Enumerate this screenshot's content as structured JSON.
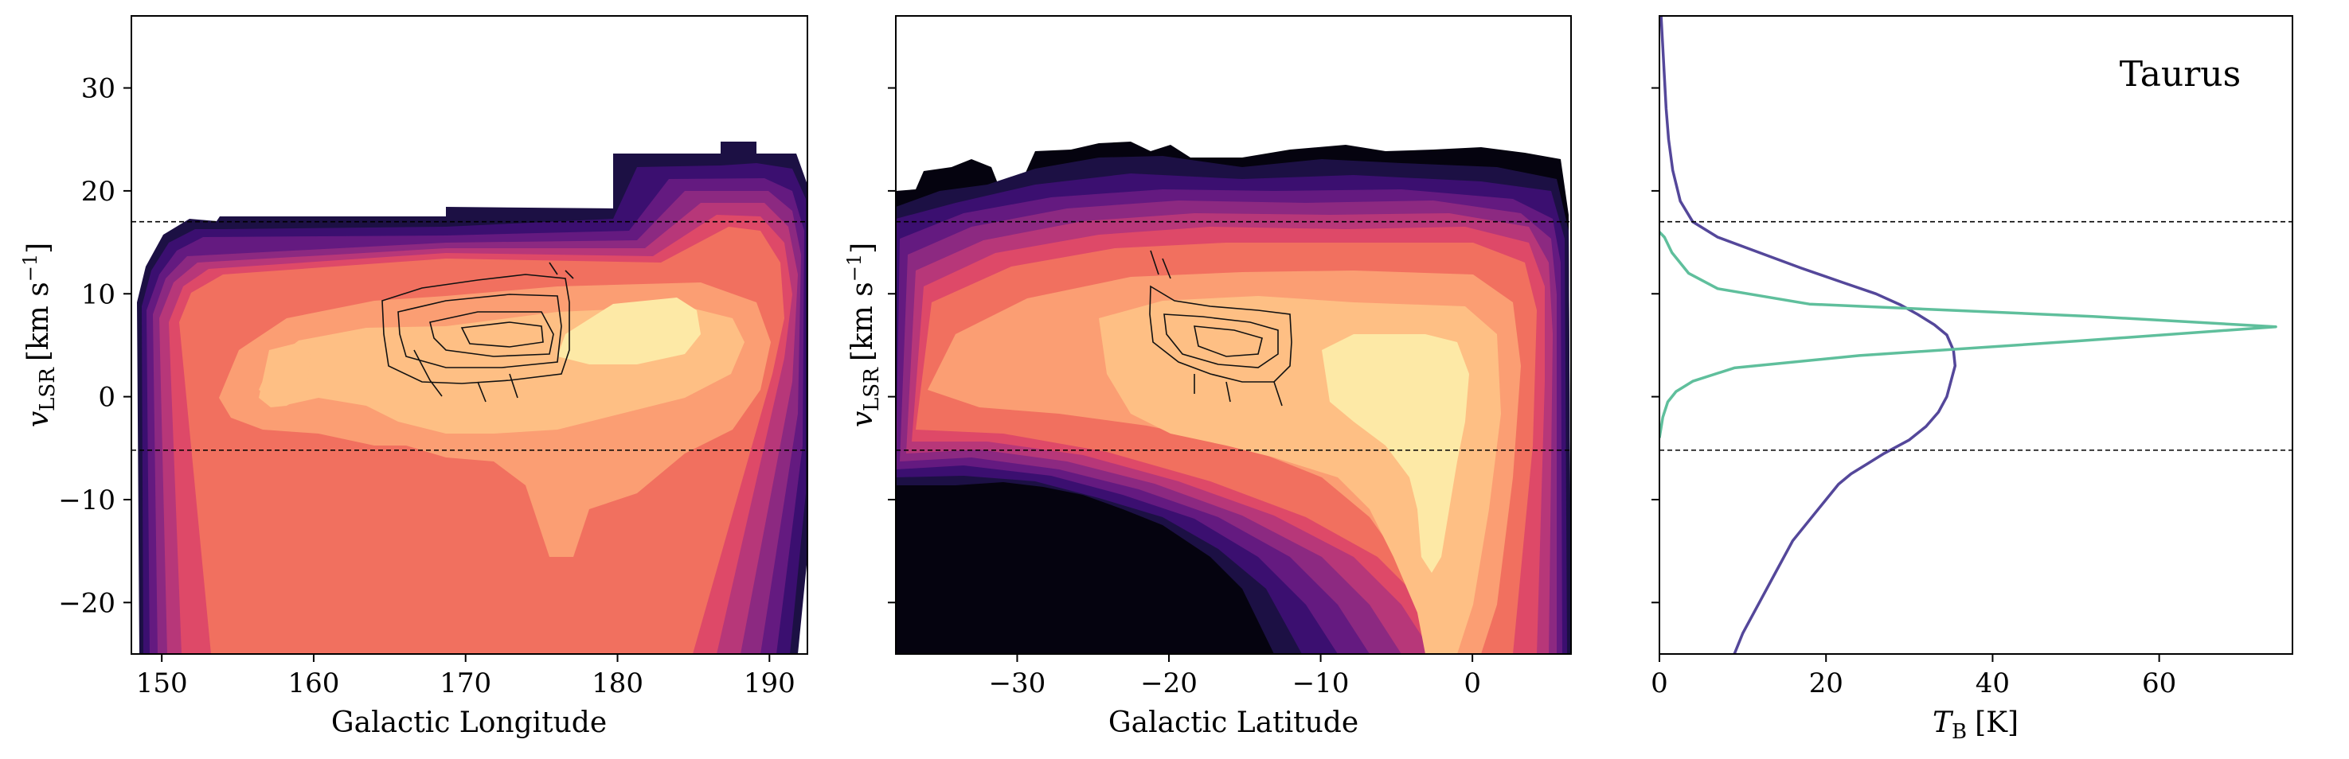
{
  "figure": {
    "annotation": "Taurus",
    "velocity_window": [
      -5.2,
      17.0
    ]
  },
  "chart_data": [
    {
      "type": "heatmap",
      "title": "",
      "xlabel": "Galactic Longitude",
      "ylabel": "v",
      "ylabel_sub": "LSR",
      "ylabel_units": "[km s",
      "ylabel_exp": "−1",
      "ylabel_close": "]",
      "xlim": [
        148,
        192.5
      ],
      "ylim": [
        -25,
        37
      ],
      "xticks": [
        150,
        160,
        170,
        180,
        190
      ],
      "xtick_labels": [
        "150",
        "160",
        "170",
        "180",
        "190"
      ],
      "yticks": [
        30,
        20,
        10,
        0,
        -10,
        -20
      ],
      "ytick_labels": [
        "30",
        "20",
        "10",
        "0",
        "−10",
        "−20"
      ],
      "colormap": "magma",
      "levels": 10,
      "contour_overlay_color": "#000000",
      "hlines": [
        17.0,
        -5.2
      ]
    },
    {
      "type": "heatmap",
      "title": "",
      "xlabel": "Galactic Latitude",
      "ylabel": "v",
      "ylabel_sub": "LSR",
      "ylabel_units": "[km s",
      "ylabel_exp": "−1",
      "ylabel_close": "]",
      "xlim": [
        -38,
        6.5
      ],
      "ylim": [
        -25,
        37
      ],
      "xticks": [
        -30,
        -20,
        -10,
        0
      ],
      "xtick_labels": [
        "−30",
        "−20",
        "−10",
        "0"
      ],
      "yticks": [
        30,
        20,
        10,
        0,
        -10,
        -20
      ],
      "colormap": "magma",
      "levels": 10,
      "contour_overlay_color": "#000000",
      "hlines": [
        17.0,
        -5.2
      ]
    },
    {
      "type": "line",
      "title": "",
      "xlabel_var": "T",
      "xlabel_sub": "B",
      "xlabel_units": "[K]",
      "xlim": [
        0,
        76
      ],
      "ylim": [
        -25,
        37
      ],
      "xticks": [
        0,
        20,
        40,
        60
      ],
      "xtick_labels": [
        "0",
        "20",
        "40",
        "60"
      ],
      "yticks": [
        30,
        20,
        10,
        0,
        -10,
        -20
      ],
      "hlines": [
        17.0,
        -5.2
      ],
      "series": [
        {
          "color": "#54479a",
          "x": [
            9,
            10,
            12,
            14,
            16,
            18,
            20,
            21.5,
            23,
            25,
            27,
            30,
            32,
            33.5,
            34.5,
            35,
            35.5,
            35.3,
            34.5,
            33,
            31,
            29,
            26,
            22,
            17,
            12,
            7,
            4,
            2.5,
            1.6,
            1.1,
            0.8,
            0.6,
            0.4,
            0.2
          ],
          "y": [
            -25,
            -23,
            -20,
            -17,
            -14,
            -12,
            -10,
            -8.5,
            -7.5,
            -6.5,
            -5.5,
            -4.2,
            -2.9,
            -1.5,
            0,
            1.5,
            3,
            4.5,
            6,
            7,
            8,
            8.9,
            10,
            11.1,
            12.5,
            14,
            15.5,
            17,
            19,
            22,
            25,
            28,
            31,
            34,
            37
          ]
        },
        {
          "color": "#5fbf9c",
          "x": [
            0,
            0.4,
            1,
            2,
            4,
            9,
            24,
            50,
            74,
            52,
            18,
            7,
            3.5,
            1.5,
            0.6,
            0
          ],
          "y": [
            -4,
            -2,
            -0.5,
            0.5,
            1.5,
            2.8,
            4,
            5.4,
            6.8,
            7.8,
            9,
            10.5,
            12,
            14,
            15.5,
            16
          ]
        }
      ]
    }
  ]
}
